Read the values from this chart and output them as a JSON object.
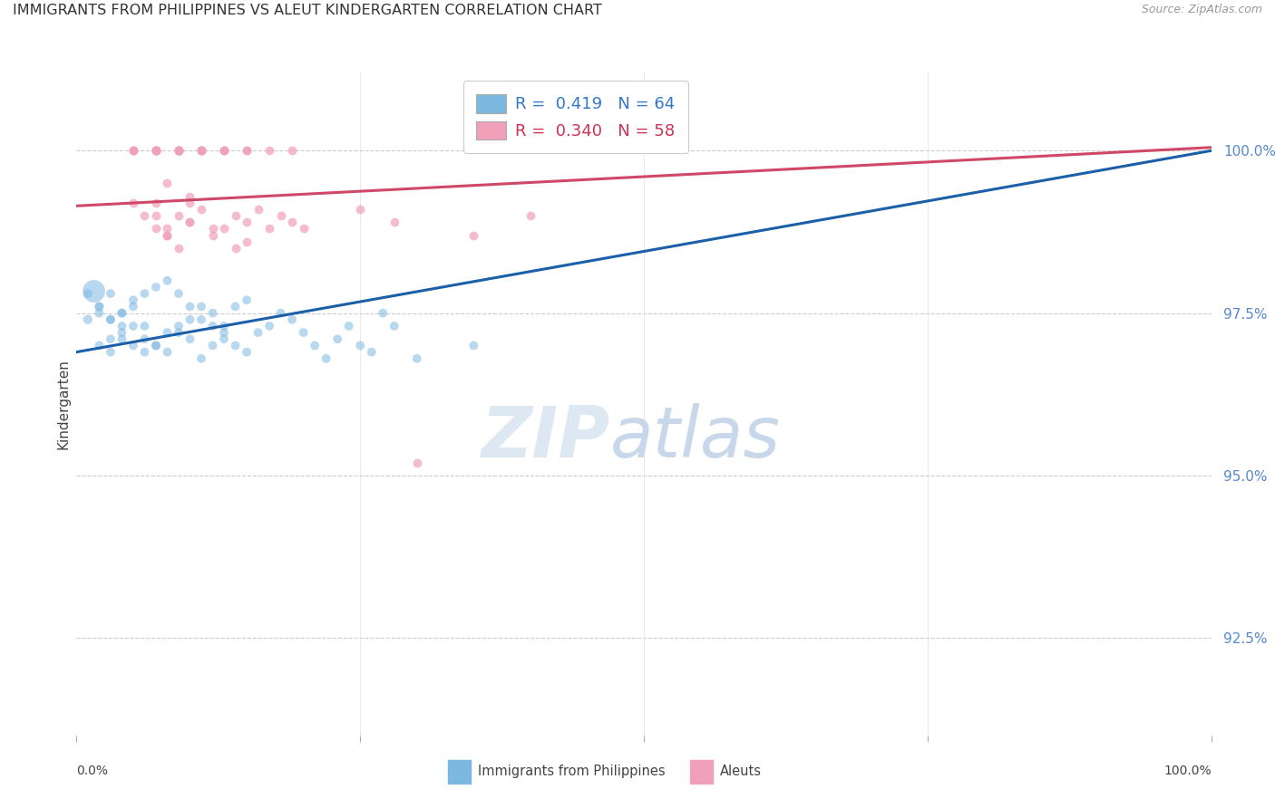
{
  "title": "IMMIGRANTS FROM PHILIPPINES VS ALEUT KINDERGARTEN CORRELATION CHART",
  "source": "Source: ZipAtlas.com",
  "ylabel": "Kindergarten",
  "ytick_values": [
    92.5,
    95.0,
    97.5,
    100.0
  ],
  "xlim": [
    0,
    100
  ],
  "ylim": [
    91.0,
    101.2
  ],
  "legend_blue_r": "0.419",
  "legend_blue_n": "64",
  "legend_pink_r": "0.340",
  "legend_pink_n": "58",
  "legend_label_blue": "Immigrants from Philippines",
  "legend_label_pink": "Aleuts",
  "blue_color": "#7db8e0",
  "pink_color": "#f0a0b8",
  "blue_line_color": "#1a5fa8",
  "pink_line_color": "#d04868",
  "watermark_zip": "ZIP",
  "watermark_atlas": "atlas",
  "blue_trend_x0": 0,
  "blue_trend_y0": 96.9,
  "blue_trend_x1": 100,
  "blue_trend_y1": 100.0,
  "pink_trend_x0": 0,
  "pink_trend_y0": 99.15,
  "pink_trend_x1": 100,
  "pink_trend_y1": 100.05,
  "blue_scatter_x": [
    1,
    2,
    3,
    4,
    5,
    6,
    7,
    8,
    9,
    10,
    11,
    12,
    13,
    14,
    15,
    3,
    4,
    5,
    6,
    7,
    8,
    9,
    10,
    11,
    12,
    13,
    2,
    3,
    4,
    5,
    6,
    2,
    3,
    4,
    1,
    2,
    3,
    4,
    5,
    6,
    7,
    8,
    9,
    10,
    11,
    12,
    13,
    14,
    15,
    16,
    17,
    18,
    19,
    20,
    21,
    22,
    23,
    24,
    25,
    26,
    27,
    28,
    30,
    35
  ],
  "blue_scatter_y": [
    97.4,
    97.6,
    97.8,
    97.5,
    97.7,
    97.3,
    97.9,
    98.0,
    97.8,
    97.6,
    97.4,
    97.5,
    97.3,
    97.6,
    97.7,
    97.1,
    97.2,
    97.0,
    96.9,
    97.0,
    97.2,
    97.3,
    97.1,
    96.8,
    97.0,
    97.2,
    97.5,
    97.4,
    97.3,
    97.6,
    97.8,
    97.0,
    96.9,
    97.1,
    97.8,
    97.6,
    97.4,
    97.5,
    97.3,
    97.1,
    97.0,
    96.9,
    97.2,
    97.4,
    97.6,
    97.3,
    97.1,
    97.0,
    96.9,
    97.2,
    97.3,
    97.5,
    97.4,
    97.2,
    97.0,
    96.8,
    97.1,
    97.3,
    97.0,
    96.9,
    97.5,
    97.3,
    96.8,
    97.0
  ],
  "blue_scatter_sizes": [
    55,
    50,
    50,
    50,
    50,
    50,
    50,
    50,
    50,
    50,
    50,
    50,
    50,
    50,
    50,
    50,
    50,
    50,
    50,
    50,
    50,
    50,
    50,
    50,
    50,
    50,
    50,
    50,
    50,
    50,
    50,
    50,
    50,
    50,
    50,
    50,
    50,
    50,
    50,
    50,
    50,
    50,
    50,
    50,
    50,
    50,
    50,
    50,
    50,
    50,
    50,
    50,
    50,
    50,
    50,
    50,
    50,
    50,
    50,
    50,
    50,
    50,
    50,
    50
  ],
  "blue_large_dot_x": 1.5,
  "blue_large_dot_y": 97.85,
  "blue_large_dot_size": 320,
  "pink_scatter_x": [
    5,
    7,
    9,
    11,
    13,
    15,
    5,
    7,
    9,
    11,
    13,
    15,
    17,
    19,
    5,
    7,
    9,
    11,
    7,
    9,
    11,
    13,
    7,
    9,
    9,
    8,
    10,
    12,
    14,
    5,
    6,
    7,
    8,
    9,
    10,
    30,
    35,
    40,
    28,
    25,
    20,
    15,
    10,
    8,
    7,
    7,
    8,
    9,
    10,
    11,
    12,
    13,
    14,
    15,
    16,
    17,
    18,
    19
  ],
  "pink_scatter_y": [
    100.0,
    100.0,
    100.0,
    100.0,
    100.0,
    100.0,
    100.0,
    100.0,
    100.0,
    100.0,
    100.0,
    100.0,
    100.0,
    100.0,
    100.0,
    100.0,
    100.0,
    100.0,
    100.0,
    100.0,
    100.0,
    100.0,
    100.0,
    100.0,
    100.0,
    99.5,
    99.3,
    98.8,
    98.5,
    99.2,
    99.0,
    98.8,
    98.7,
    99.0,
    99.2,
    95.2,
    98.7,
    99.0,
    98.9,
    99.1,
    98.8,
    98.6,
    98.9,
    98.7,
    99.2,
    99.0,
    98.8,
    98.5,
    98.9,
    99.1,
    98.7,
    98.8,
    99.0,
    98.9,
    99.1,
    98.8,
    99.0,
    98.9
  ]
}
